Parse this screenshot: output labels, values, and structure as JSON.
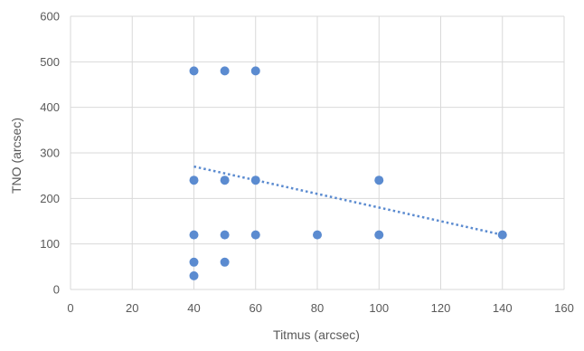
{
  "chart_data": {
    "type": "scatter",
    "title": "",
    "xlabel": "Titmus (arcsec)",
    "ylabel": "TNO (arcsec)",
    "xlim": [
      0,
      160
    ],
    "ylim": [
      0,
      600
    ],
    "x_ticks": [
      0,
      20,
      40,
      60,
      80,
      100,
      120,
      140,
      160
    ],
    "y_ticks": [
      0,
      100,
      200,
      300,
      400,
      500,
      600
    ],
    "grid": true,
    "legend": "none",
    "series": [
      {
        "color": "#5B8BD0",
        "points": [
          {
            "x": 40,
            "y": 480
          },
          {
            "x": 50,
            "y": 480
          },
          {
            "x": 60,
            "y": 480
          },
          {
            "x": 40,
            "y": 240
          },
          {
            "x": 50,
            "y": 240
          },
          {
            "x": 60,
            "y": 240
          },
          {
            "x": 100,
            "y": 240
          },
          {
            "x": 40,
            "y": 120
          },
          {
            "x": 50,
            "y": 120
          },
          {
            "x": 60,
            "y": 120
          },
          {
            "x": 80,
            "y": 120
          },
          {
            "x": 100,
            "y": 120
          },
          {
            "x": 140,
            "y": 120
          },
          {
            "x": 40,
            "y": 60
          },
          {
            "x": 50,
            "y": 60
          },
          {
            "x": 40,
            "y": 30
          }
        ]
      }
    ],
    "trendline": {
      "type": "linear",
      "style": "dotted",
      "color": "#5B8BD0",
      "x_start": 40,
      "y_start": 270,
      "x_end": 140,
      "y_end": 120
    },
    "colors": {
      "gridline": "#D9D9D9",
      "text": "#595959"
    }
  }
}
